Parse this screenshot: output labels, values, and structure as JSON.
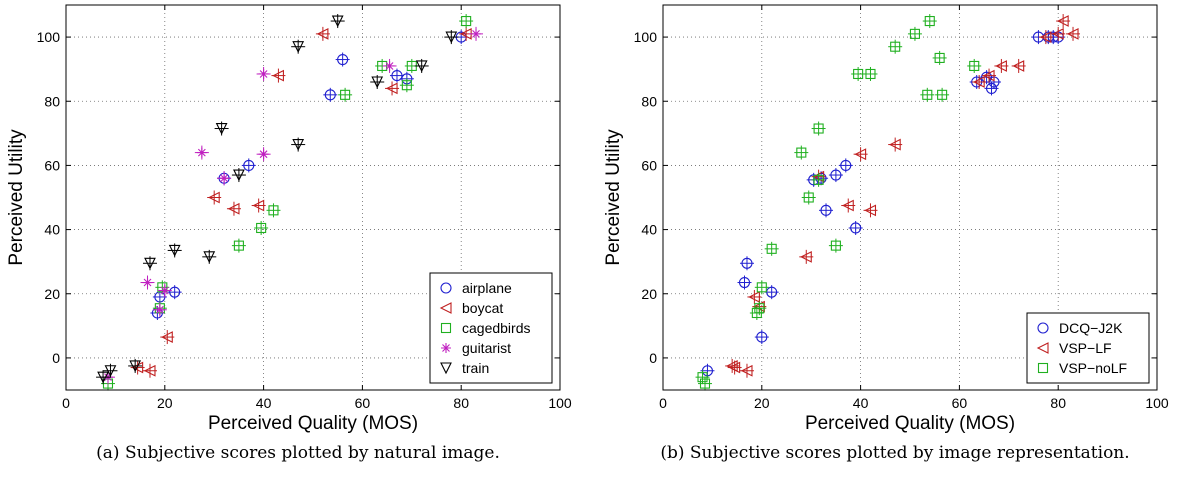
{
  "chart_data": [
    {
      "type": "scatter",
      "xlabel": "Perceived Quality (MOS)",
      "ylabel": "Perceived Utility",
      "xlim": [
        0,
        100
      ],
      "ylim": [
        -10,
        110
      ],
      "xticks": [
        0,
        20,
        40,
        60,
        80,
        100
      ],
      "yticks": [
        0,
        20,
        40,
        60,
        80,
        100
      ],
      "grid": true,
      "legend_position": "bottom-right",
      "caption_label": "(a)",
      "caption_text": "Subjective scores plotted by natural image.",
      "series": [
        {
          "name": "airplane",
          "marker": "circle",
          "color": "#2020d0",
          "points": [
            [
              80,
              100
            ],
            [
              56,
              93
            ],
            [
              69,
              87
            ],
            [
              67,
              88
            ],
            [
              37,
              60
            ],
            [
              32,
              56
            ],
            [
              19,
              19
            ],
            [
              22,
              20.5
            ],
            [
              18.5,
              14
            ],
            [
              53.5,
              82
            ]
          ]
        },
        {
          "name": "boycat",
          "marker": "triangle-left",
          "color": "#c02020",
          "points": [
            [
              81,
              101
            ],
            [
              52,
              101
            ],
            [
              43,
              88
            ],
            [
              66,
              84
            ],
            [
              30,
              50
            ],
            [
              34,
              46.5
            ],
            [
              39,
              47.5
            ],
            [
              20.5,
              6.5
            ],
            [
              17,
              -4
            ],
            [
              14.5,
              -3
            ]
          ]
        },
        {
          "name": "cagedbirds",
          "marker": "square",
          "color": "#20b020",
          "points": [
            [
              81,
              105
            ],
            [
              70,
              91
            ],
            [
              64,
              91
            ],
            [
              56.5,
              82
            ],
            [
              69,
              85
            ],
            [
              42,
              46
            ],
            [
              39.5,
              40.5
            ],
            [
              35,
              35
            ],
            [
              19.5,
              22
            ],
            [
              19,
              15.5
            ],
            [
              8.5,
              -8
            ]
          ]
        },
        {
          "name": "guitarist",
          "marker": "star",
          "color": "#c020c0",
          "points": [
            [
              83,
              101
            ],
            [
              65.5,
              91
            ],
            [
              40,
              88.5
            ],
            [
              27.5,
              64
            ],
            [
              40,
              63.5
            ],
            [
              32,
              56
            ],
            [
              16.5,
              23.5
            ],
            [
              20,
              21
            ],
            [
              19,
              15
            ],
            [
              8.5,
              -6
            ]
          ]
        },
        {
          "name": "train",
          "marker": "triangle-down",
          "color": "#000000",
          "points": [
            [
              55,
              105
            ],
            [
              78,
              100
            ],
            [
              47,
              97
            ],
            [
              72,
              91
            ],
            [
              63,
              86
            ],
            [
              31.5,
              71.5
            ],
            [
              47,
              66.5
            ],
            [
              35,
              57
            ],
            [
              22,
              33.5
            ],
            [
              29,
              31.5
            ],
            [
              17,
              29.5
            ],
            [
              14,
              -2.5
            ],
            [
              9,
              -4
            ],
            [
              7.5,
              -6
            ]
          ]
        }
      ]
    },
    {
      "type": "scatter",
      "xlabel": "Perceived Quality (MOS)",
      "ylabel": "Perceived Utility",
      "xlim": [
        0,
        100
      ],
      "ylim": [
        -10,
        110
      ],
      "xticks": [
        0,
        20,
        40,
        60,
        80,
        100
      ],
      "yticks": [
        0,
        20,
        40,
        60,
        80,
        100
      ],
      "grid": true,
      "legend_position": "bottom-right",
      "caption_label": "(b)",
      "caption_text": "Subjective scores plotted by image representation.",
      "series": [
        {
          "name": "DCQ−J2K",
          "marker": "circle",
          "color": "#2020d0",
          "points": [
            [
              76,
              100
            ],
            [
              78,
              100
            ],
            [
              79,
              100
            ],
            [
              80,
              100
            ],
            [
              63.5,
              86
            ],
            [
              65.5,
              87.5
            ],
            [
              66.5,
              84
            ],
            [
              67,
              86
            ],
            [
              37,
              60
            ],
            [
              35,
              57
            ],
            [
              32,
              56
            ],
            [
              30.5,
              55.5
            ],
            [
              33,
              46
            ],
            [
              39,
              40.5
            ],
            [
              17,
              29.5
            ],
            [
              16.5,
              23.5
            ],
            [
              22,
              20.5
            ],
            [
              20,
              6.5
            ],
            [
              9,
              -4
            ]
          ]
        },
        {
          "name": "VSP−LF",
          "marker": "triangle-left",
          "color": "#c02020",
          "points": [
            [
              80,
              101
            ],
            [
              81,
              105
            ],
            [
              83,
              101
            ],
            [
              77.5,
              100
            ],
            [
              72,
              91
            ],
            [
              68.5,
              91
            ],
            [
              66,
              88
            ],
            [
              64,
              86
            ],
            [
              47,
              66.5
            ],
            [
              40,
              63.5
            ],
            [
              31.5,
              56.5
            ],
            [
              37.5,
              47.5
            ],
            [
              42,
              46
            ],
            [
              29,
              31.5
            ],
            [
              18.5,
              19
            ],
            [
              19.5,
              16
            ],
            [
              17,
              -4
            ],
            [
              14.5,
              -3
            ],
            [
              14,
              -2.5
            ]
          ]
        },
        {
          "name": "VSP−noLF",
          "marker": "square",
          "color": "#20b020",
          "points": [
            [
              54,
              105
            ],
            [
              51,
              101
            ],
            [
              47,
              97
            ],
            [
              56,
              93.5
            ],
            [
              63,
              91
            ],
            [
              39.5,
              88.5
            ],
            [
              42,
              88.5
            ],
            [
              53.5,
              82
            ],
            [
              56.5,
              82
            ],
            [
              31.5,
              71.5
            ],
            [
              28,
              64
            ],
            [
              31.5,
              55.5
            ],
            [
              29.5,
              50
            ],
            [
              35,
              35
            ],
            [
              22,
              34
            ],
            [
              20,
              22
            ],
            [
              19.5,
              15.5
            ],
            [
              19,
              14
            ],
            [
              8,
              -6
            ],
            [
              8.5,
              -8
            ]
          ]
        }
      ]
    }
  ]
}
